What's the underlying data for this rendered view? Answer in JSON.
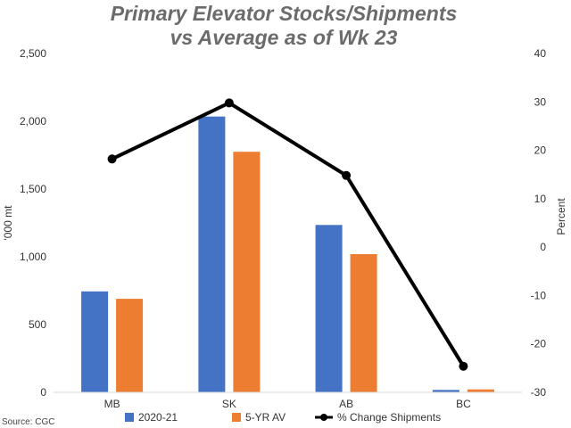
{
  "chart_data": {
    "type": "bar",
    "title_lines": [
      "Primary Elevator Stocks/Shipments",
      "vs Average as of Wk 23"
    ],
    "categories": [
      "MB",
      "SK",
      "AB",
      "BC"
    ],
    "series": [
      {
        "name": "2020-21",
        "kind": "bar",
        "axis": "left",
        "color": "#4472C4",
        "values": [
          745,
          2035,
          1235,
          18
        ]
      },
      {
        "name": "5-YR AV",
        "kind": "bar",
        "axis": "left",
        "color": "#ED7D31",
        "values": [
          690,
          1775,
          1020,
          22
        ]
      },
      {
        "name": "% Change Shipments",
        "kind": "line",
        "axis": "right",
        "color": "#000000",
        "values": [
          18.2,
          29.8,
          14.8,
          -24.6
        ]
      }
    ],
    "ylabel": "'000 mt",
    "y2label": "Percent",
    "ylim": [
      0,
      2500
    ],
    "y2lim": [
      -30,
      40
    ],
    "yticks": [
      "0",
      "500",
      "1,000",
      "1,500",
      "2,000",
      "2,500"
    ],
    "y2ticks": [
      "-30",
      "-20",
      "-10",
      "0",
      "10",
      "20",
      "30",
      "40"
    ],
    "grid": false,
    "legend_position": "bottom",
    "source": "Source: CGC"
  }
}
